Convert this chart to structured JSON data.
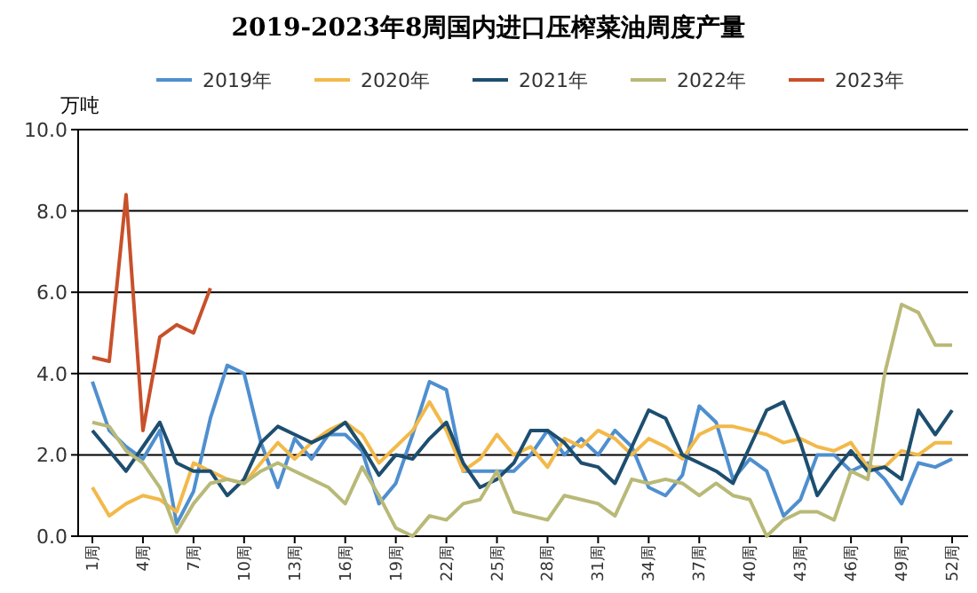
{
  "chart_data": {
    "type": "line",
    "title": "2019-2023年8周国内进口压榨菜油周度产量",
    "ylabel": "万吨",
    "legend": "top",
    "grid": "y",
    "marker": "none",
    "line_style": "solid",
    "categories": [
      "1周",
      null,
      null,
      "4周",
      null,
      null,
      "7周",
      null,
      null,
      "10周",
      null,
      null,
      "13周",
      null,
      null,
      "16周",
      null,
      null,
      "19周",
      null,
      null,
      "22周",
      null,
      null,
      "25周",
      null,
      null,
      "28周",
      null,
      null,
      "31周",
      null,
      null,
      "34周",
      null,
      null,
      "37周",
      null,
      null,
      "40周",
      null,
      null,
      "43周",
      null,
      null,
      "46周",
      null,
      null,
      "49周",
      null,
      null,
      "52周"
    ],
    "ylim": [
      0,
      10
    ],
    "yticks": [
      {
        "value": 0,
        "label": "0.0"
      },
      {
        "value": 2,
        "label": "2.0"
      },
      {
        "value": 4,
        "label": "4.0"
      },
      {
        "value": 6,
        "label": "6.0"
      },
      {
        "value": 8,
        "label": "8.0"
      },
      {
        "value": 10,
        "label": "10.0"
      }
    ],
    "series": [
      {
        "name": "2019年",
        "color": "#4f8fcf",
        "values": [
          3.8,
          2.6,
          2.2,
          1.9,
          2.6,
          0.3,
          1.1,
          2.9,
          4.2,
          4.0,
          2.3,
          1.2,
          2.4,
          1.9,
          2.5,
          2.5,
          2.1,
          0.8,
          1.3,
          2.5,
          3.8,
          3.6,
          1.6,
          1.6,
          1.6,
          1.6,
          2.0,
          2.6,
          2.0,
          2.4,
          2.0,
          2.6,
          2.2,
          1.2,
          1.0,
          1.5,
          3.2,
          2.8,
          1.4,
          1.9,
          1.6,
          0.5,
          0.9,
          2.0,
          2.0,
          1.6,
          1.8,
          1.4,
          0.8,
          1.8,
          1.7,
          1.9
        ]
      },
      {
        "name": "2020年",
        "color": "#f2b94a",
        "values": [
          1.2,
          0.5,
          0.8,
          1.0,
          0.9,
          0.6,
          1.8,
          1.6,
          1.4,
          1.3,
          1.8,
          2.3,
          1.9,
          2.3,
          2.6,
          2.8,
          2.5,
          1.8,
          2.2,
          2.6,
          3.3,
          2.6,
          1.6,
          1.9,
          2.5,
          2.0,
          2.2,
          1.7,
          2.4,
          2.2,
          2.6,
          2.4,
          2.0,
          2.4,
          2.2,
          1.9,
          2.5,
          2.7,
          2.7,
          2.6,
          2.5,
          2.3,
          2.4,
          2.2,
          2.1,
          2.3,
          1.7,
          1.7,
          2.1,
          2.0,
          2.3,
          2.3
        ]
      },
      {
        "name": "2021年",
        "color": "#1d4e6f",
        "values": [
          2.6,
          2.1,
          1.6,
          2.2,
          2.8,
          1.8,
          1.6,
          1.6,
          1.0,
          1.4,
          2.3,
          2.7,
          2.5,
          2.3,
          2.5,
          2.8,
          2.2,
          1.5,
          2.0,
          1.9,
          2.4,
          2.8,
          1.8,
          1.2,
          1.4,
          1.8,
          2.6,
          2.6,
          2.3,
          1.8,
          1.7,
          1.3,
          2.2,
          3.1,
          2.9,
          2.0,
          1.8,
          1.6,
          1.3,
          2.2,
          3.1,
          3.3,
          2.3,
          1.0,
          1.6,
          2.1,
          1.6,
          1.7,
          1.4,
          3.1,
          2.5,
          3.1
        ]
      },
      {
        "name": "2022年",
        "color": "#b9b978",
        "values": [
          2.8,
          2.7,
          2.1,
          1.8,
          1.2,
          0.1,
          0.8,
          1.3,
          1.4,
          1.3,
          1.6,
          1.8,
          1.6,
          1.4,
          1.2,
          0.8,
          1.7,
          1.0,
          0.2,
          0.0,
          0.5,
          0.4,
          0.8,
          0.9,
          1.6,
          0.6,
          0.5,
          0.4,
          1.0,
          0.9,
          0.8,
          0.5,
          1.4,
          1.3,
          1.4,
          1.3,
          1.0,
          1.3,
          1.0,
          0.9,
          0.0,
          0.4,
          0.6,
          0.6,
          0.4,
          1.6,
          1.4,
          4.0,
          5.7,
          5.5,
          4.7,
          4.7
        ]
      },
      {
        "name": "2023年",
        "color": "#c8502a",
        "values": [
          4.4,
          4.3,
          8.4,
          2.6,
          4.9,
          5.2,
          5.0,
          6.1,
          null,
          null,
          null,
          null,
          null,
          null,
          null,
          null,
          null,
          null,
          null,
          null,
          null,
          null,
          null,
          null,
          null,
          null,
          null,
          null,
          null,
          null,
          null,
          null,
          null,
          null,
          null,
          null,
          null,
          null,
          null,
          null,
          null,
          null,
          null,
          null,
          null,
          null,
          null,
          null,
          null,
          null,
          null,
          null
        ]
      }
    ]
  }
}
